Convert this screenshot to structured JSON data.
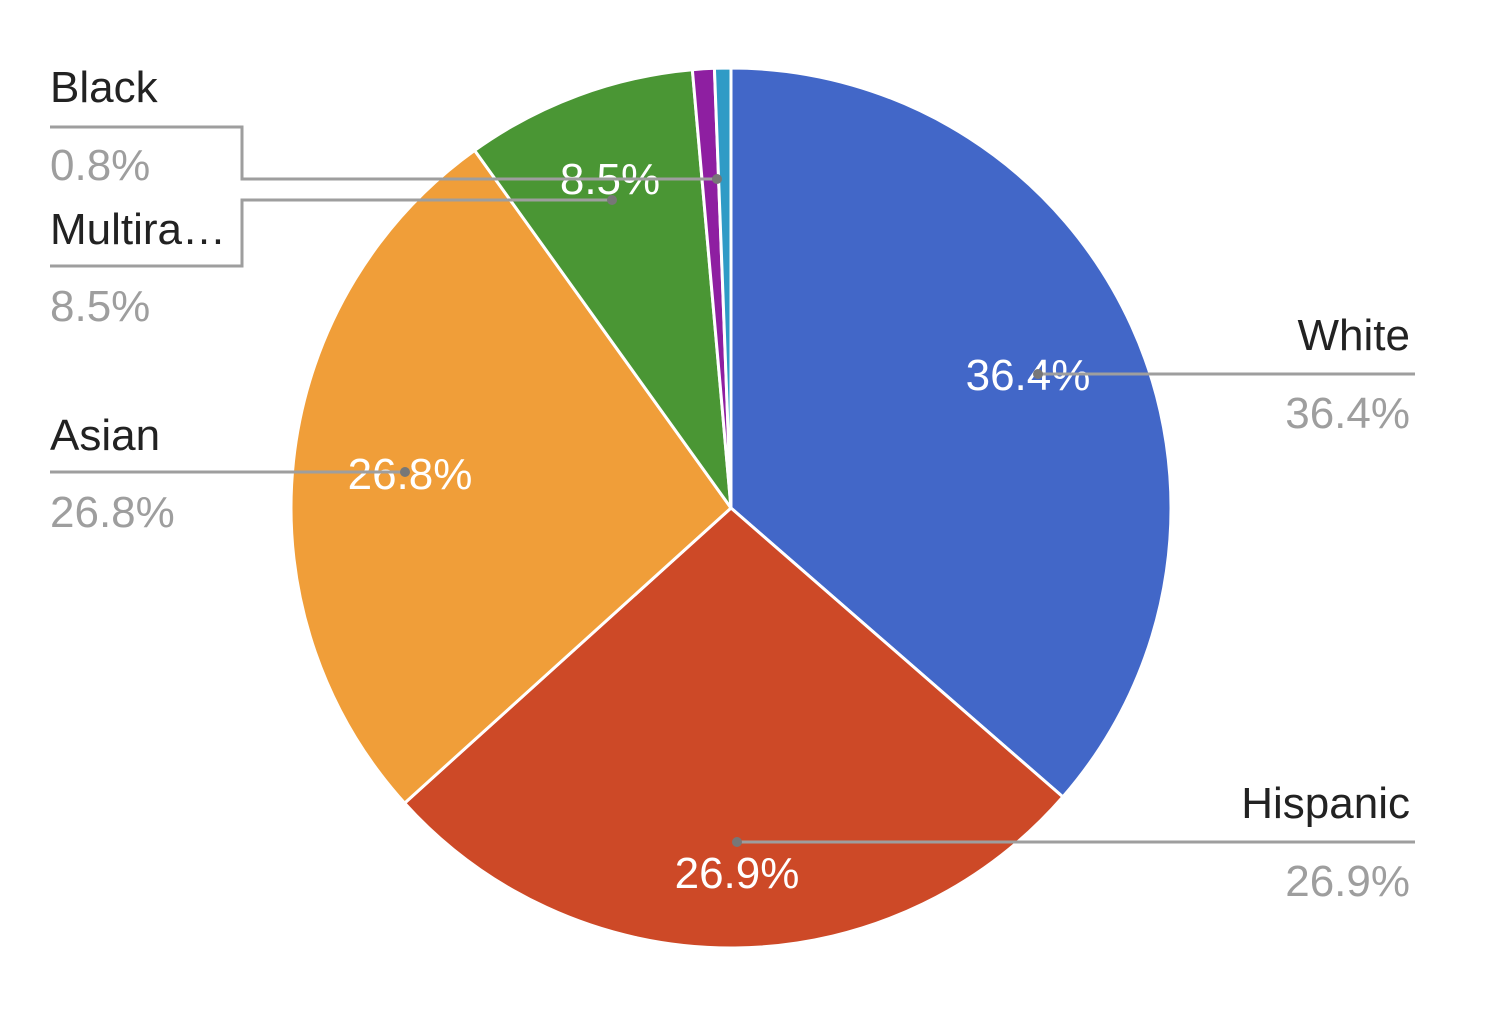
{
  "chart_data": {
    "type": "pie",
    "title": "",
    "slices": [
      {
        "label": "White",
        "value": 36.4,
        "display": "36.4%",
        "color": "#4267c8"
      },
      {
        "label": "Hispanic",
        "value": 26.9,
        "display": "26.9%",
        "color": "#cd4927"
      },
      {
        "label": "Asian",
        "value": 26.8,
        "display": "26.8%",
        "color": "#f09e39"
      },
      {
        "label": "Multira…",
        "value": 8.5,
        "display": "8.5%",
        "color": "#4a9634"
      },
      {
        "label": "Black",
        "value": 0.8,
        "display": "0.8%",
        "color": "#8e1fa1"
      },
      {
        "label": "",
        "value": 0.6,
        "display": "",
        "color": "#2f9bc6"
      }
    ],
    "slice_labels": [
      "36.4%",
      "26.9%",
      "26.8%",
      "8.5%"
    ],
    "legend": "labeled leader lines"
  }
}
